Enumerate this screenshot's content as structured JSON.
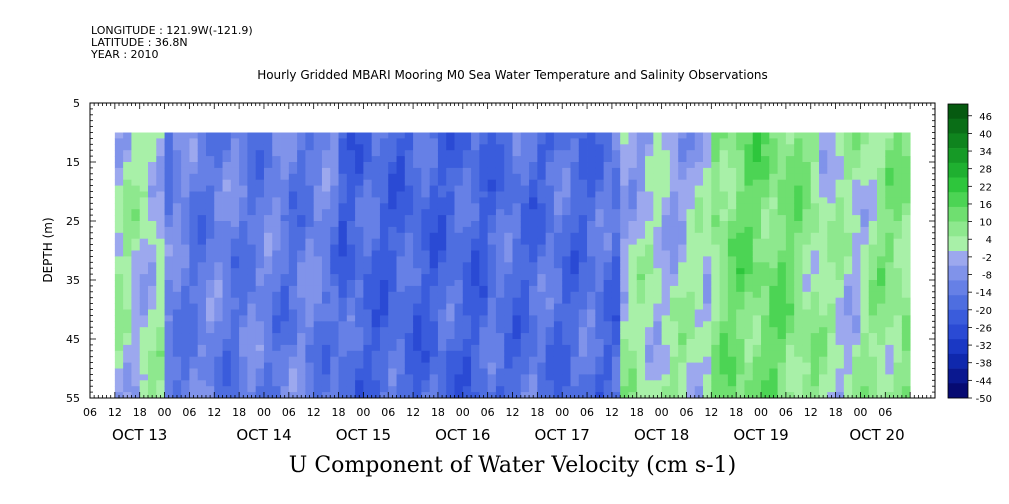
{
  "meta": {
    "longitude": "LONGITUDE : 121.9W(-121.9)",
    "latitude": "LATITUDE : 36.8N",
    "year": "YEAR : 2010"
  },
  "chart_data": {
    "type": "heatmap",
    "title": "Hourly Gridded MBARI Mooring M0 Sea Water Temperature and Salinity Observations",
    "xlabel_bottom": "U Component of Water Velocity (cm s-1)",
    "ylabel": "DEPTH (m)",
    "y_range": [
      5,
      55
    ],
    "y_ticks": [
      5,
      15,
      25,
      35,
      45,
      55
    ],
    "data_depth_range": [
      10,
      55
    ],
    "x_hour_ticks": [
      "06",
      "12",
      "18",
      "00",
      "06",
      "12",
      "18",
      "00",
      "06",
      "12",
      "18",
      "00",
      "06",
      "12",
      "18",
      "00",
      "06",
      "12",
      "18",
      "00",
      "06",
      "12",
      "18",
      "00",
      "06",
      "12",
      "18",
      "00",
      "06",
      "12",
      "18",
      "00",
      "06"
    ],
    "x_day_labels": [
      "OCT 13",
      "OCT 14",
      "OCT 15",
      "OCT 16",
      "OCT 17",
      "OCT 18",
      "OCT 19",
      "OCT 20"
    ],
    "data_time_range_hours": [
      6,
      198
    ],
    "colorbar": {
      "labels": [
        "46",
        "40",
        "34",
        "28",
        "22",
        "16",
        "10",
        "4",
        "-2",
        "-8",
        "-14",
        "-20",
        "-26",
        "-32",
        "-38",
        "-44",
        "-50"
      ],
      "min": -50,
      "max": 50
    }
  }
}
